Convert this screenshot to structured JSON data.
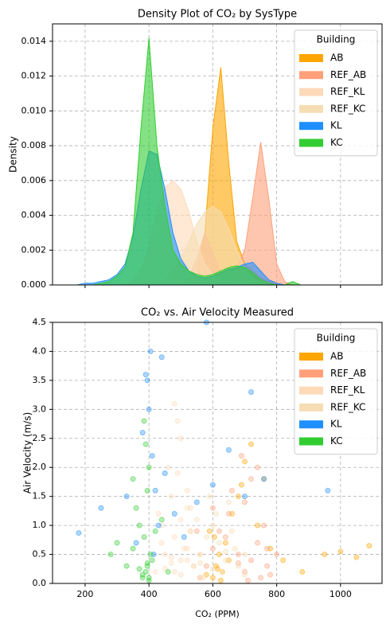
{
  "chart_data": [
    {
      "type": "area",
      "title": "Density Plot of CO₂ by SysType",
      "ylabel": "Density",
      "x": [
        150,
        175,
        200,
        225,
        250,
        275,
        300,
        325,
        350,
        375,
        400,
        425,
        450,
        475,
        500,
        525,
        550,
        575,
        600,
        625,
        650,
        675,
        700,
        725,
        750,
        775,
        800,
        825,
        850,
        875,
        900
      ],
      "xlim": [
        98,
        1130
      ],
      "xticks": [
        200,
        400,
        600,
        800,
        1000
      ],
      "xtick_labels": false,
      "ylim": [
        0,
        0.015
      ],
      "yticks": [
        {
          "value": 0,
          "label": "0.000"
        },
        {
          "value": 0.002,
          "label": "0.002"
        },
        {
          "value": 0.004,
          "label": "0.004"
        },
        {
          "value": 0.006,
          "label": "0.006"
        },
        {
          "value": 0.008,
          "label": "0.008"
        },
        {
          "value": 0.01,
          "label": "0.010"
        },
        {
          "value": 0.012,
          "label": "0.012"
        },
        {
          "value": 0.014,
          "label": "0.014"
        }
      ],
      "grid": true,
      "legend": "upper right",
      "legend_title": "Building",
      "series": [
        {
          "name": "AB",
          "color": "#ffa500",
          "values": [
            0,
            0,
            0,
            0,
            0,
            0,
            0,
            0,
            0,
            0,
            0,
            0,
            0,
            0,
            0,
            0.0001,
            0.0006,
            0.003,
            0.009,
            0.0125,
            0.007,
            0.0025,
            0.0012,
            0.0008,
            0.0004,
            0.0002,
            0.0001,
            0,
            0,
            0,
            0
          ]
        },
        {
          "name": "REF_AB",
          "color": "#ffa07a",
          "values": [
            0,
            0,
            0,
            0,
            0,
            0,
            0,
            0,
            0,
            0,
            0,
            0,
            0,
            0,
            0.0001,
            0.0005,
            0.0015,
            0.003,
            0.0018,
            0.0008,
            0.0005,
            0.001,
            0.002,
            0.005,
            0.0082,
            0.005,
            0.0012,
            0.0002,
            0,
            0,
            0
          ]
        },
        {
          "name": "REF_KL",
          "color": "#ffdab9",
          "values": [
            0,
            0,
            0,
            0,
            0,
            0,
            0,
            0,
            0.0002,
            0.0008,
            0.0022,
            0.0042,
            0.0056,
            0.006,
            0.0055,
            0.0042,
            0.0025,
            0.0012,
            0.0006,
            0.0004,
            0.0003,
            0.0002,
            0.0001,
            0,
            0,
            0,
            0,
            0,
            0,
            0,
            0
          ]
        },
        {
          "name": "REF_KC",
          "color": "#f5deb3",
          "values": [
            0,
            0,
            0,
            0,
            0,
            0,
            0,
            0,
            0,
            0,
            0,
            0,
            0.0003,
            0.0008,
            0.0015,
            0.0025,
            0.0035,
            0.0042,
            0.0045,
            0.0042,
            0.0032,
            0.002,
            0.001,
            0.0004,
            0.0001,
            0,
            0,
            0,
            0,
            0,
            0
          ]
        },
        {
          "name": "KL",
          "color": "#1e90ff",
          "values": [
            0,
            0,
            0.0001,
            0.0001,
            0.0002,
            0.0003,
            0.0006,
            0.0012,
            0.0028,
            0.0055,
            0.0077,
            0.0075,
            0.0055,
            0.003,
            0.0015,
            0.0008,
            0.0005,
            0.0004,
            0.0005,
            0.0007,
            0.0009,
            0.001,
            0.0012,
            0.0013,
            0.0008,
            0.0003,
            0.0001,
            0,
            0,
            0,
            0
          ]
        },
        {
          "name": "KC",
          "color": "#32cd32",
          "values": [
            0,
            0,
            0,
            0,
            0.0001,
            0.0002,
            0.0005,
            0.001,
            0.003,
            0.009,
            0.0142,
            0.008,
            0.0045,
            0.002,
            0.0012,
            0.0008,
            0.0006,
            0.0005,
            0.0006,
            0.0008,
            0.001,
            0.0011,
            0.001,
            0.0007,
            0.0003,
            0.0001,
            0,
            0,
            0.0002,
            0,
            0
          ]
        }
      ]
    },
    {
      "type": "scatter",
      "title": "CO₂ vs. Air Velocity Measured",
      "xlabel": "CO₂ (PPM)",
      "ylabel": "Air Velocity (m/s)",
      "xlim": [
        98,
        1130
      ],
      "xticks": [
        200,
        400,
        600,
        800,
        1000
      ],
      "ylim": [
        0,
        4.5
      ],
      "yticks": [
        {
          "value": 0,
          "label": "0.0"
        },
        0.5,
        {
          "value": 1,
          "label": "1.0"
        },
        1.5,
        {
          "value": 2,
          "label": "2.0"
        },
        2.5,
        {
          "value": 3,
          "label": "3.0"
        },
        3.5,
        {
          "value": 4,
          "label": "4.0"
        },
        4.5
      ],
      "grid": true,
      "legend": "upper right",
      "legend_title": "Building",
      "series": [
        {
          "name": "AB",
          "color": "#ffa500",
          "x": [
            600,
            610,
            620,
            630,
            640,
            650,
            580,
            590,
            660,
            680,
            700,
            720,
            740,
            760,
            780,
            820,
            880,
            950,
            1000,
            1050,
            1090,
            625,
            615,
            605,
            690
          ],
          "values": [
            0.1,
            0.3,
            0.5,
            0.2,
            0.7,
            0.4,
            0.15,
            0.9,
            1.2,
            1.5,
            2.1,
            2.4,
            1.0,
            1.8,
            0.6,
            0.4,
            0.2,
            0.5,
            0.55,
            0.45,
            0.65,
            0.05,
            0.25,
            0.8,
            1.7
          ]
        },
        {
          "name": "REF_AB",
          "color": "#ffa07a",
          "x": [
            560,
            580,
            600,
            620,
            650,
            680,
            700,
            720,
            740,
            750,
            760,
            770,
            780,
            700,
            660,
            640,
            800,
            720,
            740,
            600,
            550,
            680,
            710,
            690,
            770
          ],
          "values": [
            0.1,
            0.3,
            0.6,
            0.9,
            1.2,
            0.5,
            0.2,
            0.4,
            0.7,
            0.1,
            1.0,
            0.3,
            0.15,
            1.4,
            1.6,
            0.8,
            0.5,
            1.8,
            2.0,
            1.3,
            0.9,
            0.35,
            0.05,
            2.2,
            0.6
          ]
        },
        {
          "name": "REF_KL",
          "color": "#ffdab9",
          "x": [
            420,
            450,
            480,
            500,
            520,
            540,
            470,
            460,
            490,
            510,
            430,
            500,
            530,
            560,
            440,
            470,
            480,
            520,
            450,
            490,
            560,
            500,
            470,
            440,
            530
          ],
          "values": [
            0.2,
            0.5,
            0.8,
            1.1,
            0.4,
            0.3,
            1.5,
            2.0,
            2.8,
            0.6,
            1.2,
            0.15,
            0.9,
            0.5,
            0.7,
            0.35,
            3.1,
            1.6,
            0.25,
            1.9,
            0.1,
            2.5,
            0.45,
            1.0,
            1.3
          ]
        },
        {
          "name": "REF_KC",
          "color": "#f5deb3",
          "x": [
            480,
            500,
            520,
            540,
            560,
            580,
            600,
            620,
            640,
            660,
            680,
            700,
            520,
            550,
            590,
            630,
            670,
            610,
            570,
            530,
            650,
            700,
            560,
            600,
            640
          ],
          "values": [
            0.2,
            0.4,
            0.6,
            0.3,
            0.5,
            0.8,
            1.0,
            0.7,
            0.4,
            0.9,
            0.3,
            0.5,
            1.3,
            1.1,
            1.5,
            0.2,
            0.6,
            1.2,
            0.1,
            0.9,
            1.4,
            0.15,
            0.35,
            0.25,
            0.55
          ]
        },
        {
          "name": "KL",
          "color": "#1e90ff",
          "x": [
            180,
            250,
            330,
            360,
            390,
            400,
            405,
            410,
            420,
            430,
            450,
            480,
            510,
            550,
            600,
            650,
            700,
            720,
            760,
            960,
            380,
            395,
            415,
            440,
            580
          ],
          "values": [
            0.87,
            1.3,
            1.5,
            0.7,
            3.6,
            3.0,
            4.0,
            2.2,
            1.6,
            1.0,
            1.9,
            1.2,
            0.8,
            1.4,
            1.7,
            2.3,
            1.5,
            3.3,
            1.8,
            1.6,
            2.6,
            3.5,
            0.5,
            3.9,
            4.5
          ]
        },
        {
          "name": "KC",
          "color": "#32cd32",
          "x": [
            380,
            390,
            395,
            400,
            405,
            385,
            370,
            360,
            410,
            395,
            400,
            390,
            350,
            420,
            300,
            330,
            280,
            460,
            380,
            395,
            400,
            440,
            350,
            370,
            385
          ],
          "values": [
            0.1,
            0.2,
            0.3,
            0.05,
            0.5,
            0.8,
            1.0,
            1.3,
            0.4,
            1.6,
            2.0,
            2.4,
            0.6,
            0.9,
            0.7,
            0.3,
            0.5,
            0.2,
            0.15,
            0.35,
            0.1,
            1.1,
            1.8,
            0.25,
            2.8
          ]
        }
      ]
    }
  ]
}
